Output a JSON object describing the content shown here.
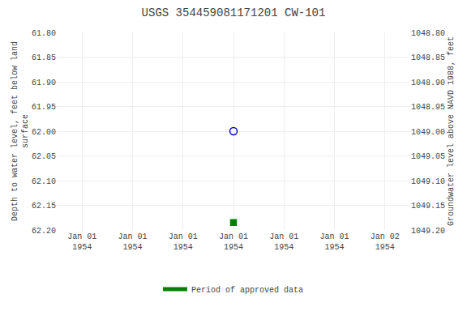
{
  "chart_data": {
    "type": "scatter",
    "title": "USGS 354459081171201 CW-101",
    "categories": [
      "Jan 01\n1954",
      "Jan 01\n1954",
      "Jan 01\n1954",
      "Jan 01\n1954",
      "Jan 01\n1954",
      "Jan 01\n1954",
      "Jan 02\n1954"
    ],
    "y_label": "Depth to water level, feet below land\nsurface",
    "y2_label": "Groundwater level above NAVD 1988, feet",
    "series": [
      {
        "type": "scatter",
        "marker": "circle-open",
        "color": "#0000cc",
        "values": [
          null,
          null,
          null,
          62.0,
          null,
          null,
          null
        ]
      },
      {
        "type": "scatter",
        "marker": "square",
        "color": "#008000",
        "values": [
          null,
          null,
          null,
          62.185,
          null,
          null,
          null
        ]
      },
      {
        "type": "line",
        "name": "Period of approved data",
        "color": "#008000",
        "values": [
          null,
          null,
          null,
          null,
          null,
          null,
          null
        ]
      }
    ],
    "ylim": [
      62.2,
      61.8
    ],
    "yticks": [
      {
        "value": 61.8,
        "label": "61.80"
      },
      {
        "value": 61.85,
        "label": "61.85"
      },
      {
        "value": 61.9,
        "label": "61.90"
      },
      {
        "value": 61.95,
        "label": "61.95"
      },
      {
        "value": 62.0,
        "label": "62.00"
      },
      {
        "value": 62.05,
        "label": "62.05"
      },
      {
        "value": 62.1,
        "label": "62.10"
      },
      {
        "value": 62.15,
        "label": "62.15"
      },
      {
        "value": 62.2,
        "label": "62.20"
      }
    ],
    "y2lim": [
      1049.2,
      1048.8
    ],
    "y2ticks": [
      {
        "value": 1049.2,
        "label": "1049.20"
      },
      {
        "value": 1049.15,
        "label": "1049.15"
      },
      {
        "value": 1049.1,
        "label": "1049.10"
      },
      {
        "value": 1049.05,
        "label": "1049.05"
      },
      {
        "value": 1049.0,
        "label": "1049.00"
      },
      {
        "value": 1048.95,
        "label": "1048.95"
      },
      {
        "value": 1048.9,
        "label": "1048.90"
      },
      {
        "value": 1048.85,
        "label": "1048.85"
      },
      {
        "value": 1048.8,
        "label": "1048.80"
      }
    ],
    "grid": true,
    "legend": "bottom"
  }
}
